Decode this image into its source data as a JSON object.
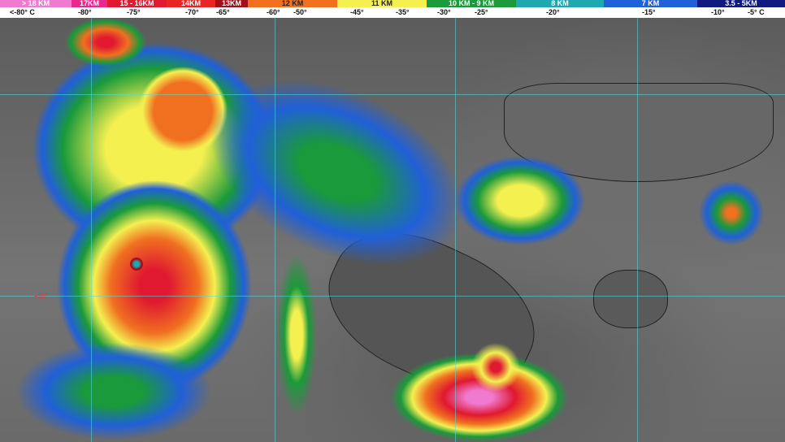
{
  "legend": {
    "bands": [
      {
        "label": "> 18 KM",
        "color": "#f07ad0"
      },
      {
        "label": "17KM",
        "color": "#e8288c"
      },
      {
        "label": "15 - 16KM",
        "color": "#e01830"
      },
      {
        "label": "14KM",
        "color": "#e82424"
      },
      {
        "label": "13KM",
        "color": "#a0101a"
      },
      {
        "label": "12 KM",
        "color": "#f07020"
      },
      {
        "label": "11 KM",
        "color": "#f4f050"
      },
      {
        "label": "10 KM -  9 KM",
        "color": "#1a9a3a"
      },
      {
        "label": "8 KM",
        "color": "#20a8b0"
      },
      {
        "label": "7 KM",
        "color": "#2060d8"
      },
      {
        "label": "3.5 - 5KM",
        "color": "#101a80"
      }
    ],
    "temperatures": [
      "<-80° C",
      "-80°",
      "-75°",
      "-70°",
      "-65°",
      "-60°",
      "-50°",
      "-45°",
      "-35°",
      "-30°",
      "-25°",
      "-20°",
      "-15°",
      "-10°",
      "-5° C"
    ]
  },
  "map": {
    "latitude_label": "+20°"
  }
}
